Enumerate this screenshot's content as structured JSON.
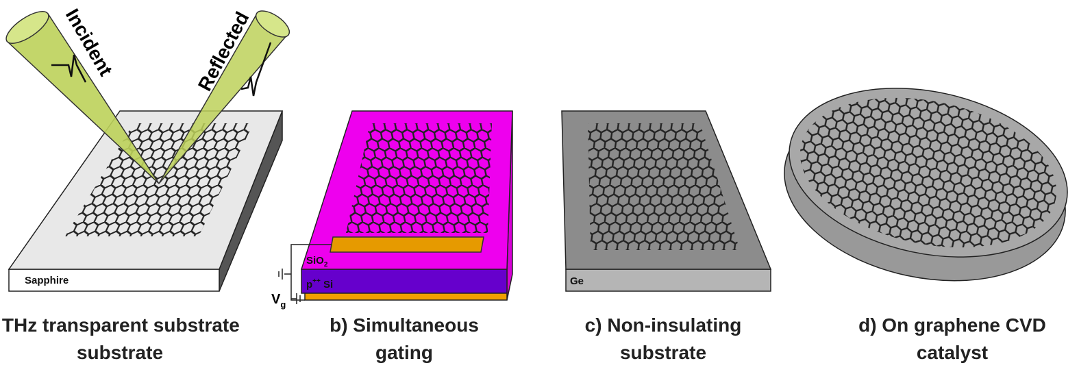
{
  "panels": [
    {
      "caption": [
        "a) THz transparent substrate",
        "substrate"
      ],
      "labels": {
        "substrate": "Sapphire",
        "incident": "Incident",
        "reflected": "Reflected"
      }
    },
    {
      "caption": [
        "b) Simultaneous",
        "gating"
      ],
      "labels": {
        "oxide": "SiO",
        "oxide_sub": "2",
        "doped": "p",
        "doped_sup": "++",
        "doped_rest": " Si",
        "gate": "V",
        "gate_sub": "g"
      }
    },
    {
      "caption": [
        "c) Non-insulating",
        "substrate"
      ],
      "labels": {
        "substrate": "Ge"
      }
    },
    {
      "caption": [
        "d) On graphene CVD",
        "catalyst"
      ]
    }
  ]
}
